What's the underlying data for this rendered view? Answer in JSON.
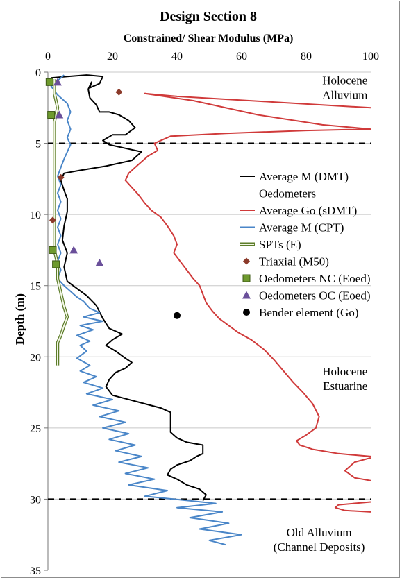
{
  "chart_data": {
    "type": "line",
    "title": "Design Section 8",
    "xlabel": "Constrained/ Shear Modulus (MPa)",
    "ylabel": "Depth (m)",
    "xlim": [
      0,
      100
    ],
    "ylim": [
      0,
      35
    ],
    "x_axis_position": "top",
    "y_axis_inverted": true,
    "xticks": [
      0,
      20,
      40,
      60,
      80,
      100
    ],
    "yticks": [
      0,
      5,
      10,
      15,
      20,
      25,
      30,
      35
    ],
    "x_tick_labels": [
      "0",
      "20",
      "40",
      "60",
      "80",
      "100"
    ],
    "y_tick_labels": [
      "0",
      "5",
      "10",
      "15",
      "20",
      "25",
      "30",
      "35"
    ],
    "grid": "horizontal",
    "legend_position": "center-right",
    "layer_boundaries": [
      5,
      30
    ],
    "layer_labels": [
      {
        "lines": [
          "Holocene",
          "Alluvium"
        ],
        "x": 99,
        "y": 0.85,
        "align": "end"
      },
      {
        "lines": [
          "Holocene",
          "Estuarine"
        ],
        "x": 99,
        "y": 21.3,
        "align": "end"
      },
      {
        "lines": [
          "Old Alluvium",
          "(Channel Deposits)"
        ],
        "x": 84,
        "y": 32.6,
        "align": "middle"
      }
    ],
    "legend": [
      {
        "label": "Average M (DMT)",
        "kind": "line",
        "color": "#000000"
      },
      {
        "label": "Oedometers",
        "kind": "none",
        "color": "#000000"
      },
      {
        "label": "Average Go (sDMT)",
        "kind": "line",
        "color": "#d03a3a"
      },
      {
        "label": "Average M (CPT)",
        "kind": "line",
        "color": "#4a86c8"
      },
      {
        "label": "SPTs (E)",
        "kind": "double-line",
        "color": "#8fb04a"
      },
      {
        "label": "Triaxial (M50)",
        "kind": "diamond",
        "color": "#8b3a2a"
      },
      {
        "label": "Oedometers NC (Eoed)",
        "kind": "square",
        "color": "#6e9a2e"
      },
      {
        "label": "Oedometers OC (Eoed)",
        "kind": "triangle",
        "color": "#6a4f9a"
      },
      {
        "label": "Bender element (Go)",
        "kind": "circle",
        "color": "#000000"
      }
    ],
    "series": [
      {
        "name": "Average M (DMT)",
        "kind": "line",
        "color": "#000000",
        "points": [
          [
            1,
            0.4
          ],
          [
            6,
            0.3
          ],
          [
            12,
            0.2
          ],
          [
            17,
            0.3
          ],
          [
            16,
            0.8
          ],
          [
            13,
            1.1
          ],
          [
            13.5,
            0.7
          ],
          [
            12.5,
            1.2
          ],
          [
            13,
            1.8
          ],
          [
            15,
            2.3
          ],
          [
            16,
            2.8
          ],
          [
            19,
            2.8
          ],
          [
            22,
            3.0
          ],
          [
            25,
            3.4
          ],
          [
            27,
            3.9
          ],
          [
            24,
            4.4
          ],
          [
            20,
            4.4
          ],
          [
            17,
            4.8
          ],
          [
            19,
            5.1
          ],
          [
            25,
            5.4
          ],
          [
            29,
            5.6
          ],
          [
            26,
            6.2
          ],
          [
            18,
            6.6
          ],
          [
            10,
            6.9
          ],
          [
            5,
            7.1
          ],
          [
            4,
            7.6
          ],
          [
            5,
            8.3
          ],
          [
            6,
            8.9
          ],
          [
            6,
            9.8
          ],
          [
            5,
            10.8
          ],
          [
            4.5,
            11.8
          ],
          [
            6,
            12.7
          ],
          [
            5,
            13.7
          ],
          [
            6,
            14.7
          ],
          [
            9,
            15.2
          ],
          [
            12,
            15.7
          ],
          [
            15,
            16.4
          ],
          [
            17,
            17.3
          ],
          [
            19,
            18.0
          ],
          [
            23,
            18.4
          ],
          [
            20,
            18.8
          ],
          [
            18,
            19.2
          ],
          [
            21,
            19.6
          ],
          [
            24,
            20.1
          ],
          [
            26,
            20.4
          ],
          [
            24,
            20.8
          ],
          [
            21,
            21.1
          ],
          [
            19,
            21.6
          ],
          [
            18,
            22.1
          ],
          [
            20,
            22.7
          ],
          [
            25,
            23.0
          ],
          [
            30,
            23.3
          ],
          [
            35,
            23.6
          ],
          [
            38,
            23.9
          ],
          [
            38,
            24.6
          ],
          [
            38,
            25.3
          ],
          [
            40,
            25.7
          ],
          [
            43,
            26.0
          ],
          [
            48,
            26.2
          ],
          [
            48,
            26.8
          ],
          [
            46,
            27.0
          ],
          [
            44,
            27.3
          ],
          [
            40,
            27.6
          ],
          [
            38,
            27.9
          ],
          [
            37,
            28.3
          ],
          [
            40,
            28.6
          ],
          [
            43,
            29.0
          ],
          [
            47,
            29.3
          ],
          [
            49,
            29.7
          ],
          [
            48,
            30.1
          ]
        ]
      },
      {
        "name": "Average Go (sDMT)",
        "kind": "line",
        "color": "#d03a3a",
        "points": [
          [
            100,
            2.5
          ],
          [
            85,
            2.3
          ],
          [
            70,
            2.1
          ],
          [
            55,
            1.9
          ],
          [
            40,
            1.7
          ],
          [
            30,
            1.5
          ],
          [
            45,
            2.0
          ],
          [
            65,
            3.0
          ],
          [
            85,
            3.7
          ],
          [
            100,
            4.0
          ],
          [
            80,
            4.1
          ],
          [
            55,
            4.3
          ],
          [
            38,
            4.5
          ],
          [
            33,
            5.0
          ],
          [
            34,
            5.5
          ],
          [
            31,
            5.9
          ],
          [
            28,
            6.5
          ],
          [
            25,
            7.1
          ],
          [
            24,
            7.6
          ],
          [
            26,
            8.1
          ],
          [
            28,
            8.6
          ],
          [
            30,
            9.2
          ],
          [
            32,
            9.7
          ],
          [
            35,
            10.2
          ],
          [
            37,
            10.8
          ],
          [
            39,
            11.5
          ],
          [
            40,
            12.1
          ],
          [
            39,
            12.7
          ],
          [
            41,
            13.3
          ],
          [
            43,
            13.9
          ],
          [
            45,
            14.5
          ],
          [
            47,
            15.0
          ],
          [
            48,
            15.6
          ],
          [
            49,
            16.2
          ],
          [
            51,
            16.8
          ],
          [
            53,
            17.3
          ],
          [
            56,
            17.8
          ],
          [
            59,
            18.3
          ],
          [
            63,
            18.8
          ],
          [
            67,
            19.5
          ],
          [
            70,
            20.2
          ],
          [
            73,
            21.0
          ],
          [
            76,
            21.8
          ],
          [
            79,
            22.5
          ],
          [
            82,
            23.3
          ],
          [
            84,
            24.2
          ],
          [
            83,
            25.0
          ],
          [
            80,
            25.5
          ],
          [
            77,
            25.9
          ],
          [
            78,
            26.2
          ],
          [
            82,
            26.5
          ],
          [
            90,
            26.8
          ],
          [
            100,
            27.0
          ]
        ]
      },
      {
        "name": "Average M (CPT)",
        "kind": "line",
        "color": "#4a86c8",
        "points": [
          [
            5,
            0.2
          ],
          [
            3,
            0.6
          ],
          [
            1,
            1.0
          ],
          [
            3,
            1.6
          ],
          [
            6,
            2.2
          ],
          [
            7,
            2.8
          ],
          [
            6,
            3.4
          ],
          [
            7,
            4.0
          ],
          [
            6,
            4.6
          ],
          [
            7,
            5.1
          ],
          [
            6,
            5.6
          ],
          [
            5,
            6.1
          ],
          [
            4,
            6.7
          ],
          [
            3,
            7.3
          ],
          [
            4,
            7.9
          ],
          [
            3,
            8.5
          ],
          [
            4,
            9.1
          ],
          [
            3,
            9.7
          ],
          [
            4,
            10.3
          ],
          [
            3,
            10.9
          ],
          [
            4,
            11.5
          ],
          [
            3,
            12.1
          ],
          [
            4,
            12.7
          ],
          [
            3,
            13.3
          ],
          [
            4,
            13.9
          ],
          [
            3,
            14.5
          ],
          [
            5,
            15.0
          ],
          [
            7,
            15.4
          ],
          [
            9,
            15.8
          ],
          [
            11,
            16.1
          ],
          [
            13,
            16.6
          ],
          [
            16,
            16.9
          ],
          [
            11,
            17.2
          ],
          [
            17,
            17.5
          ],
          [
            10,
            17.8
          ],
          [
            14,
            18.1
          ],
          [
            9,
            18.5
          ],
          [
            13,
            18.9
          ],
          [
            10,
            19.2
          ],
          [
            12,
            19.6
          ],
          [
            9,
            20.1
          ],
          [
            13,
            20.6
          ],
          [
            10,
            21.0
          ],
          [
            15,
            21.4
          ],
          [
            11,
            21.8
          ],
          [
            17,
            22.2
          ],
          [
            12,
            22.6
          ],
          [
            20,
            23.0
          ],
          [
            14,
            23.4
          ],
          [
            22,
            23.8
          ],
          [
            16,
            24.2
          ],
          [
            24,
            24.6
          ],
          [
            17,
            25.0
          ],
          [
            25,
            25.4
          ],
          [
            19,
            25.8
          ],
          [
            27,
            26.2
          ],
          [
            21,
            26.6
          ],
          [
            29,
            27.0
          ],
          [
            22,
            27.4
          ],
          [
            31,
            27.8
          ],
          [
            24,
            28.2
          ],
          [
            33,
            28.6
          ],
          [
            25,
            29.0
          ],
          [
            37,
            29.4
          ],
          [
            30,
            29.8
          ],
          [
            39,
            30.0
          ],
          [
            52,
            30.3
          ],
          [
            40,
            30.6
          ],
          [
            54,
            30.9
          ],
          [
            44,
            31.3
          ],
          [
            56,
            31.7
          ],
          [
            47,
            32.1
          ],
          [
            60,
            32.5
          ],
          [
            50,
            32.9
          ],
          [
            55,
            33.2
          ]
        ]
      },
      {
        "name": "SPTs (E)",
        "kind": "double-line",
        "color": "#8fb04a",
        "points": [
          [
            2,
            0.5
          ],
          [
            2,
            1.5
          ],
          [
            3,
            2.5
          ],
          [
            2,
            3.5
          ],
          [
            2,
            4.5
          ],
          [
            2,
            5.5
          ],
          [
            2,
            6.5
          ],
          [
            2,
            7.5
          ],
          [
            2,
            8.5
          ],
          [
            2,
            9.5
          ],
          [
            2,
            10.5
          ],
          [
            2,
            11.5
          ],
          [
            2,
            12.5
          ],
          [
            3,
            13.5
          ],
          [
            3,
            14.5
          ],
          [
            4,
            15.5
          ],
          [
            5,
            16.5
          ],
          [
            6,
            17.2
          ],
          [
            5,
            17.8
          ],
          [
            4,
            18.5
          ],
          [
            3,
            19.0
          ],
          [
            3,
            20.6
          ]
        ]
      },
      {
        "name": "Average Go (sDMT) deep",
        "kind": "line",
        "color": "#d03a3a",
        "points": [
          [
            100,
            27.1
          ],
          [
            95,
            27.4
          ],
          [
            92,
            28.0
          ],
          [
            95,
            28.5
          ],
          [
            100,
            28.7
          ]
        ]
      },
      {
        "name": "Average Go (sDMT) deep 2",
        "kind": "line",
        "color": "#d03a3a",
        "points": [
          [
            100,
            30.2
          ],
          [
            90,
            30.4
          ],
          [
            89,
            30.6
          ],
          [
            92,
            30.8
          ],
          [
            100,
            30.9
          ]
        ]
      },
      {
        "name": "Triaxial (M50)",
        "kind": "diamond",
        "color": "#8b3a2a",
        "points": [
          [
            22,
            1.4
          ],
          [
            4,
            7.4
          ],
          [
            1.5,
            10.4
          ]
        ]
      },
      {
        "name": "Oedometers NC (Eoed)",
        "kind": "square",
        "color": "#6e9a2e",
        "points": [
          [
            0.5,
            0.7
          ],
          [
            1,
            3.0
          ],
          [
            1.5,
            12.5
          ],
          [
            2.5,
            13.5
          ]
        ]
      },
      {
        "name": "Oedometers OC (Eoed)",
        "kind": "triangle",
        "color": "#6a4f9a",
        "points": [
          [
            3,
            0.7
          ],
          [
            3.5,
            3.0
          ],
          [
            8,
            12.5
          ],
          [
            16,
            13.4
          ]
        ]
      },
      {
        "name": "Bender element (Go)",
        "kind": "circle",
        "color": "#000000",
        "points": [
          [
            40,
            17.1
          ]
        ]
      }
    ]
  }
}
